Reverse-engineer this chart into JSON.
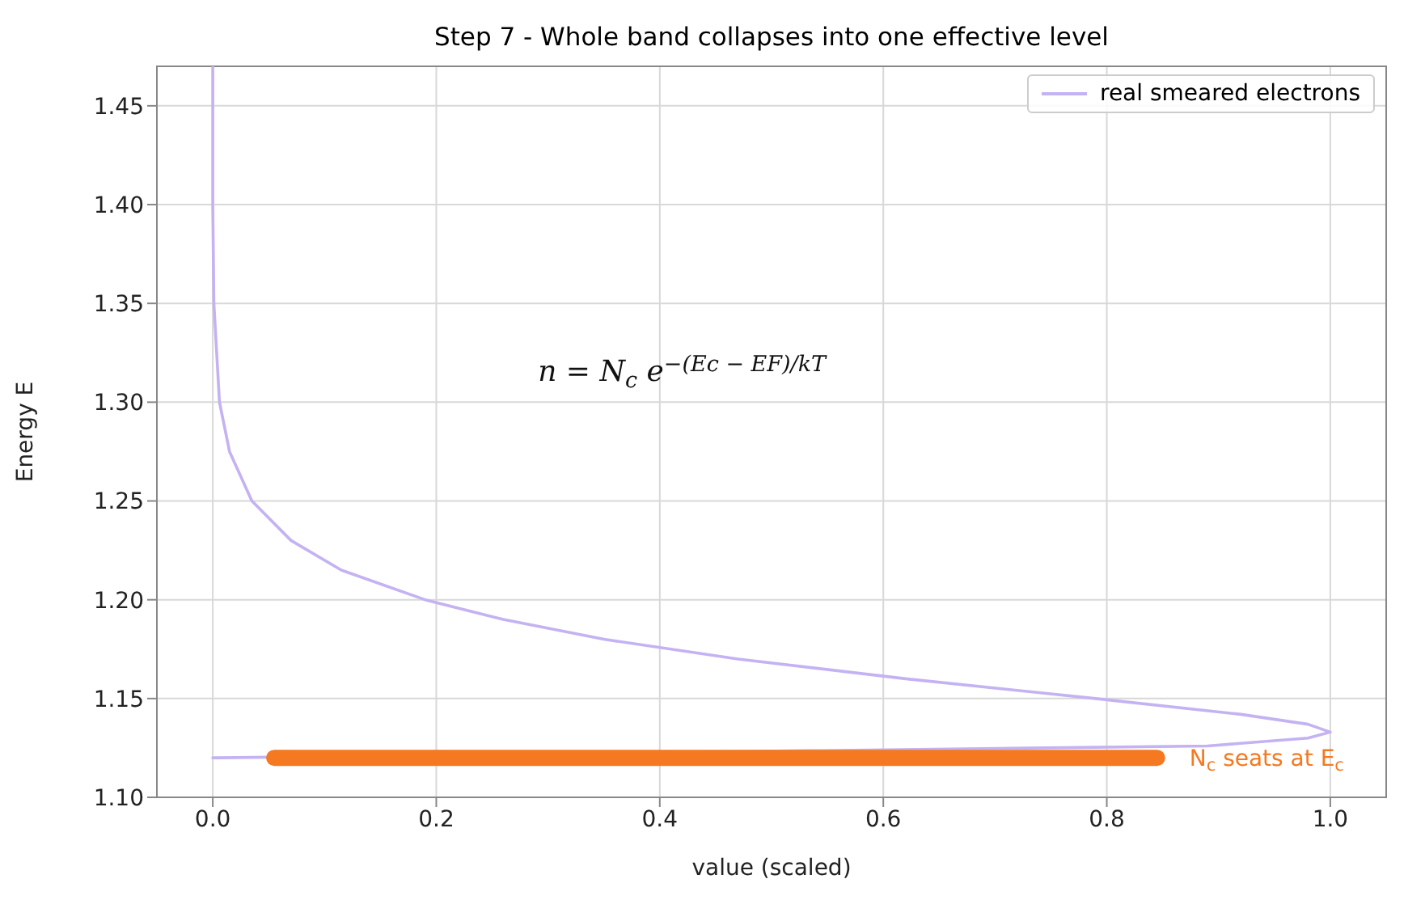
{
  "chart_data": {
    "type": "line",
    "title": "Step 7 - Whole band collapses into one effective level",
    "xlabel": "value (scaled)",
    "ylabel": "Energy E",
    "xlim": [
      -0.05,
      1.05
    ],
    "xticks": [
      {
        "value": 0,
        "label": "0.0"
      },
      {
        "value": 0.2,
        "label": "0.2"
      },
      {
        "value": 0.4,
        "label": "0.4"
      },
      {
        "value": 0.6,
        "label": "0.6"
      },
      {
        "value": 0.8,
        "label": "0.8"
      },
      {
        "value": 1,
        "label": "1.0"
      }
    ],
    "ylim": [
      1.1,
      1.47
    ],
    "yticks": [
      {
        "value": 1.1,
        "label": "1.10"
      },
      {
        "value": 1.15,
        "label": "1.15"
      },
      {
        "value": 1.2,
        "label": "1.20"
      },
      {
        "value": 1.25,
        "label": "1.25"
      },
      {
        "value": 1.3,
        "label": "1.30"
      },
      {
        "value": 1.35,
        "label": "1.35"
      },
      {
        "value": 1.4,
        "label": "1.40"
      },
      {
        "value": 1.45,
        "label": "1.45"
      }
    ],
    "grid": true,
    "legend": "top right",
    "marker": "none",
    "series": [
      {
        "name": "real smeared electrons",
        "color": "#c4b2f2",
        "x": [
          0,
          0.005,
          0.89,
          0.98,
          1.0,
          0.98,
          0.92,
          0.79,
          0.62,
          0.47,
          0.35,
          0.26,
          0.19,
          0.115,
          0.07,
          0.035,
          0.015,
          0.006,
          0.001,
          0,
          0
        ],
        "values": [
          1.12,
          1.12,
          1.126,
          1.13,
          1.133,
          1.137,
          1.142,
          1.15,
          1.16,
          1.17,
          1.18,
          1.19,
          1.2,
          1.215,
          1.23,
          1.25,
          1.275,
          1.3,
          1.35,
          1.4,
          1.47
        ]
      },
      {
        "color": "#f47920",
        "x": [
          0.055,
          0.845
        ],
        "values": [
          1.12,
          1.12
        ]
      }
    ],
    "annotations": [
      "n = N$_{c}$ e$^{−(Ec − EF)/kT}$",
      "N$_{c}$ seats at E$_{c}$"
    ]
  }
}
